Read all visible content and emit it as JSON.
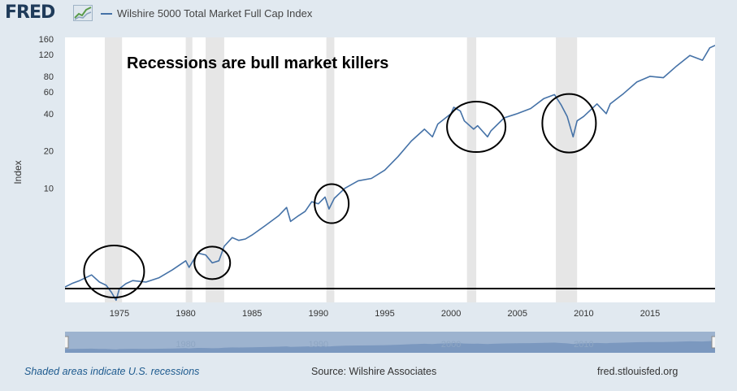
{
  "header": {
    "logo": "FRED",
    "logo_icon": "chart-line-icon",
    "legend_label": "Wilshire 5000 Total Market Full Cap Index",
    "series_color": "#4572a7"
  },
  "annotation": "Recessions are bull market killers",
  "footer": {
    "recessions_note": "Shaded areas indicate U.S. recessions",
    "source": "Source: Wilshire Associates",
    "site": "fred.stlouisfed.org"
  },
  "chart_data": {
    "type": "line",
    "title": "",
    "ylabel": "Index",
    "xlabel": "",
    "y_scale": "log",
    "xlim": [
      1970.9,
      2019.9
    ],
    "ylim": [
      1.2,
      165
    ],
    "x_ticks": [
      1975,
      1980,
      1985,
      1990,
      1995,
      2000,
      2005,
      2010,
      2015
    ],
    "y_ticks": [
      10,
      20,
      40,
      60,
      80,
      120,
      160
    ],
    "navigator_ticks": [
      1980,
      1990,
      2000,
      2010
    ],
    "grid": false,
    "legend_position": "top",
    "recessions": [
      [
        1973.9,
        1975.2
      ],
      [
        1980.0,
        1980.5
      ],
      [
        1981.5,
        1982.9
      ],
      [
        1990.6,
        1991.2
      ],
      [
        2001.2,
        2001.9
      ],
      [
        2007.9,
        2009.5
      ]
    ],
    "circled_periods": [
      1974.6,
      1982.0,
      1991.0,
      2001.9,
      2008.9
    ],
    "reference_line": 1.55,
    "series": [
      {
        "name": "Wilshire 5000 Total Market Full Cap Index",
        "x": [
          1970.9,
          1971.5,
          1972.0,
          1972.9,
          1973.5,
          1974.0,
          1974.4,
          1974.75,
          1975.0,
          1975.5,
          1976.0,
          1977.0,
          1978.0,
          1979.0,
          1980.0,
          1980.25,
          1980.9,
          1981.5,
          1982.0,
          1982.5,
          1982.9,
          1983.5,
          1984.0,
          1984.5,
          1985.0,
          1986.0,
          1987.0,
          1987.6,
          1987.9,
          1988.5,
          1989.0,
          1989.5,
          1990.0,
          1990.5,
          1990.8,
          1991.2,
          1992.0,
          1993.0,
          1994.0,
          1995.0,
          1996.0,
          1997.0,
          1998.0,
          1998.6,
          1999.0,
          2000.0,
          2000.2,
          2000.7,
          2001.0,
          2001.7,
          2002.0,
          2002.75,
          2003.0,
          2004.0,
          2005.0,
          2006.0,
          2007.0,
          2007.8,
          2008.3,
          2008.75,
          2009.2,
          2009.5,
          2010.0,
          2011.0,
          2011.7,
          2012.0,
          2013.0,
          2014.0,
          2015.0,
          2016.0,
          2017.0,
          2018.0,
          2018.95,
          2019.5,
          2019.9
        ],
        "y": [
          1.6,
          1.72,
          1.8,
          2.0,
          1.75,
          1.65,
          1.45,
          1.25,
          1.55,
          1.7,
          1.8,
          1.75,
          1.9,
          2.2,
          2.6,
          2.3,
          3.0,
          2.9,
          2.5,
          2.6,
          3.4,
          4.0,
          3.8,
          3.9,
          4.2,
          5.0,
          6.0,
          7.0,
          5.4,
          6.0,
          6.5,
          7.8,
          7.5,
          8.5,
          6.8,
          8.3,
          10.0,
          11.5,
          12.0,
          14.0,
          18.0,
          24.0,
          30.0,
          26.0,
          33.0,
          40.0,
          45.0,
          42.0,
          35.0,
          30.0,
          32.0,
          26.0,
          29.0,
          37.0,
          40.0,
          44.0,
          53.0,
          57.0,
          47.0,
          38.0,
          26.0,
          35.0,
          38.0,
          48.0,
          40.0,
          48.0,
          58.0,
          72.0,
          80.0,
          78.0,
          97.0,
          118.0,
          108.0,
          136.0,
          142.0
        ]
      }
    ]
  }
}
